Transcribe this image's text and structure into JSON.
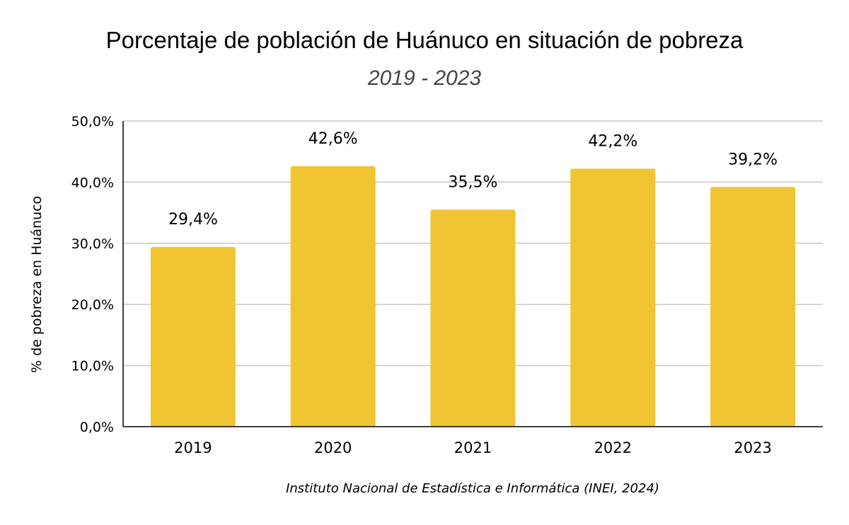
{
  "chart_data": {
    "type": "bar",
    "title": "Porcentaje de población de Huánuco en situación de pobreza",
    "subtitle": "2019 - 2023",
    "categories": [
      "2019",
      "2020",
      "2021",
      "2022",
      "2023"
    ],
    "values": [
      29.4,
      42.6,
      35.5,
      42.2,
      39.2
    ],
    "value_labels": [
      "29,4%",
      "42,6%",
      "35,5%",
      "42,2%",
      "39,2%"
    ],
    "xlabel": "",
    "ylabel": "% de pobreza en Huánuco",
    "ylim": [
      0,
      50
    ],
    "yticks": [
      0,
      10,
      20,
      30,
      40,
      50
    ],
    "ytick_labels": [
      "0,0%",
      "10,0%",
      "20,0%",
      "30,0%",
      "40,0%",
      "50,0%"
    ],
    "grid": true,
    "legend": "none",
    "bar_color": "#F0C432",
    "source": "Instituto Nacional de Estadística e Informática (INEI, 2024)"
  }
}
